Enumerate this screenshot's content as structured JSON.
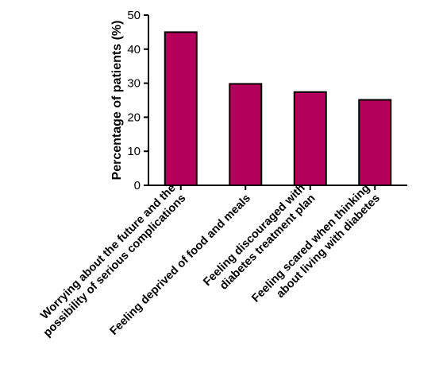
{
  "chart_data": {
    "type": "bar",
    "title": "",
    "xlabel": "",
    "ylabel": "Percentage of patients (%)",
    "ylim": [
      0,
      50
    ],
    "yticks": [
      0,
      10,
      20,
      30,
      40,
      50
    ],
    "categories": [
      [
        "Worrying about the future and the",
        "possibility of serious complications"
      ],
      [
        "Feeling deprived of food and meals"
      ],
      [
        "Feeling discouraged with",
        "diabetes treatment plan"
      ],
      [
        "Feeling scared when thinking",
        "about living with diabetes"
      ]
    ],
    "values": [
      45,
      29.8,
      27.4,
      25.1
    ],
    "bar_color": "#b5005b",
    "grid": false,
    "legend": "none"
  }
}
